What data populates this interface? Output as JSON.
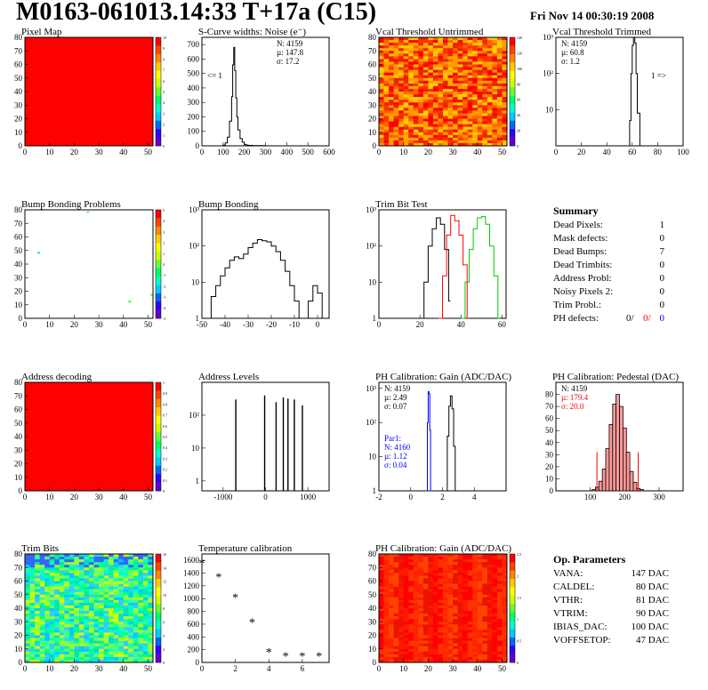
{
  "header": {
    "title": "M0163-061013.14:33 T+17a (C15)",
    "date": "Fri Nov 14 00:30:19 2008"
  },
  "colors": {
    "red": "#ff0000",
    "blue": "#0000ff",
    "green": "#00cc00",
    "black": "#000000"
  },
  "chart_data": [
    {
      "id": "pixel_map",
      "type": "heatmap",
      "title": "Pixel Map",
      "xlim": [
        0,
        52
      ],
      "ylim": [
        0,
        80
      ],
      "xticks": [
        "0",
        "10",
        "20",
        "30",
        "40",
        "50"
      ],
      "yticks": [
        "0",
        "10",
        "20",
        "30",
        "40",
        "50",
        "60",
        "70",
        "80"
      ],
      "pattern": "uniform-max",
      "zlim": [
        0,
        10
      ],
      "zticks": [
        "0",
        "1",
        "2",
        "3",
        "4",
        "5",
        "6",
        "7",
        "8",
        "9",
        "10"
      ]
    },
    {
      "id": "scurve",
      "type": "line",
      "title": "S-Curve widths: Noise (e⁻)",
      "xlim": [
        0,
        600
      ],
      "ylim": [
        0,
        750
      ],
      "xticks": [
        "0",
        "100",
        "200",
        "300",
        "400",
        "500",
        "600"
      ],
      "yticks": [
        "0",
        "100",
        "200",
        "300",
        "400",
        "500",
        "600",
        "700"
      ],
      "stats": [
        "N: 4159",
        "µ: 147.8",
        "σ: 17.2"
      ],
      "annotation": "<= 1",
      "series": [
        {
          "x": [
            90,
            100,
            110,
            120,
            130,
            140,
            145,
            150,
            155,
            160,
            165,
            170,
            180,
            190,
            200,
            210,
            220,
            240,
            260,
            300
          ],
          "values": [
            0,
            5,
            20,
            60,
            170,
            340,
            560,
            680,
            520,
            330,
            200,
            110,
            50,
            25,
            10,
            5,
            3,
            2,
            1,
            0
          ]
        }
      ]
    },
    {
      "id": "vcal_untrimmed",
      "type": "heatmap",
      "title": "Vcal Threshold Untrimmed",
      "xlim": [
        0,
        52
      ],
      "ylim": [
        0,
        80
      ],
      "xticks": [
        "0",
        "10",
        "20",
        "30",
        "40",
        "50"
      ],
      "yticks": [
        "0",
        "10",
        "20",
        "30",
        "40",
        "50",
        "60",
        "70",
        "80"
      ],
      "pattern": "noise-hot",
      "zlim": [
        0,
        140
      ],
      "zticks": [
        "0",
        "20",
        "40",
        "60",
        "80",
        "100",
        "120",
        "140"
      ]
    },
    {
      "id": "vcal_trimmed",
      "type": "line",
      "title": "Vcal Threshold Trimmed",
      "xlim": [
        0,
        100
      ],
      "ylim": [
        1,
        1000
      ],
      "logy": true,
      "xticks": [
        "0",
        "20",
        "40",
        "60",
        "80",
        "100"
      ],
      "yticks": [
        "10",
        "10²",
        "10³"
      ],
      "stats": [
        "N: 4159",
        "µ: 60.8",
        "σ: 1.2"
      ],
      "annotation": "1 =>",
      "series": [
        {
          "x": [
            56,
            58,
            59,
            60,
            61,
            62,
            63,
            64,
            66
          ],
          "values": [
            1,
            5,
            100,
            600,
            1000,
            700,
            100,
            8,
            1
          ]
        }
      ]
    },
    {
      "id": "bump_problems",
      "type": "heatmap",
      "title": "Bump Bonding Problems",
      "xlim": [
        0,
        52
      ],
      "ylim": [
        0,
        80
      ],
      "xticks": [
        "0",
        "10",
        "20",
        "30",
        "40",
        "50"
      ],
      "yticks": [
        "0",
        "10",
        "20",
        "30",
        "40",
        "50",
        "60",
        "70",
        "80"
      ],
      "pattern": "sparse",
      "zlim": [
        -5,
        5
      ],
      "zticks": [
        "-5",
        "-4",
        "-3",
        "-2",
        "-1",
        "0",
        "1",
        "2",
        "3",
        "4",
        "5"
      ]
    },
    {
      "id": "bump_bonding",
      "type": "line",
      "title": "Bump Bonding",
      "xlim": [
        -50,
        5
      ],
      "ylim": [
        1,
        1000
      ],
      "logy": true,
      "xticks": [
        "-50",
        "-40",
        "-30",
        "-20",
        "-10",
        "0"
      ],
      "yticks": [
        "1",
        "10",
        "10²",
        "10³"
      ],
      "series": [
        {
          "x": [
            -48,
            -46,
            -44,
            -42,
            -40,
            -38,
            -36,
            -34,
            -32,
            -30,
            -28,
            -26,
            -24,
            -22,
            -20,
            -18,
            -16,
            -14,
            -12,
            -10,
            -8,
            -6,
            -4,
            -2,
            0,
            2
          ],
          "values": [
            1,
            4,
            8,
            15,
            25,
            40,
            50,
            45,
            60,
            90,
            120,
            150,
            140,
            130,
            100,
            70,
            40,
            20,
            8,
            3,
            1,
            1,
            3,
            8,
            5,
            1
          ]
        }
      ]
    },
    {
      "id": "trim_bits",
      "type": "line",
      "title": "Trim Bit Test",
      "xlim": [
        0,
        62
      ],
      "ylim": [
        1,
        1000
      ],
      "logy": true,
      "xticks": [
        "0",
        "20",
        "40",
        "60"
      ],
      "yticks": [
        "1",
        "10",
        "10²",
        "10³"
      ],
      "series": [
        {
          "x": [
            20,
            22,
            24,
            26,
            28,
            30,
            32,
            34
          ],
          "values": [
            1,
            10,
            100,
            300,
            600,
            400,
            80,
            3
          ],
          "color": "#000000"
        },
        {
          "x": [
            29,
            31,
            33,
            35,
            37,
            39,
            41,
            43
          ],
          "values": [
            1,
            15,
            200,
            700,
            500,
            200,
            30,
            1
          ],
          "color": "#ff0000"
        },
        {
          "x": [
            40,
            42,
            44,
            46,
            48,
            50,
            52,
            54,
            56,
            58
          ],
          "values": [
            1,
            10,
            80,
            300,
            600,
            650,
            400,
            100,
            15,
            1
          ],
          "color": "#00cc00"
        }
      ]
    },
    {
      "id": "address_decoding",
      "type": "heatmap",
      "title": "Address decoding",
      "xlim": [
        0,
        52
      ],
      "ylim": [
        0,
        80
      ],
      "xticks": [
        "0",
        "10",
        "20",
        "30",
        "40",
        "50"
      ],
      "yticks": [
        "0",
        "10",
        "20",
        "30",
        "40",
        "50",
        "60",
        "70",
        "80"
      ],
      "pattern": "uniform-max",
      "zlim": [
        0,
        1
      ],
      "zticks": [
        "0",
        "0.1",
        "0.2",
        "0.3",
        "0.4",
        "0.5",
        "0.6",
        "0.7",
        "0.8",
        "0.9",
        "1"
      ]
    },
    {
      "id": "address_levels",
      "type": "bar",
      "title": "Address Levels",
      "xlim": [
        -1500,
        1500
      ],
      "ylim": [
        0.5,
        1000
      ],
      "logy": true,
      "xticks": [
        "-1000",
        "0",
        "1000"
      ],
      "yticks": [
        "1",
        "10",
        "10²"
      ],
      "x": [
        -700,
        -20,
        250,
        420,
        530,
        680,
        870
      ],
      "values": [
        300,
        400,
        250,
        350,
        320,
        300,
        200
      ]
    },
    {
      "id": "ph_gain",
      "type": "line",
      "title": "PH Calibration: Gain (ADC/DAC)",
      "xlim": [
        -2,
        6
      ],
      "ylim": [
        1,
        1500
      ],
      "logy": true,
      "xticks": [
        "-2",
        "0",
        "2",
        "4"
      ],
      "yticks": [
        "1",
        "10",
        "10²",
        "10³"
      ],
      "stats": [
        "N: 4159",
        "µ: 2.49",
        "σ: 0.07"
      ],
      "stats2": [
        "Par1:",
        "N: 4160",
        "µ: 1.12",
        "σ: 0.04"
      ],
      "series": [
        {
          "x": [
            2.2,
            2.3,
            2.4,
            2.5,
            2.6,
            2.7,
            2.8
          ],
          "values": [
            1,
            40,
            300,
            600,
            250,
            20,
            1
          ],
          "color": "#000000"
        },
        {
          "x": [
            1.0,
            1.05,
            1.1,
            1.15,
            1.2,
            1.25
          ],
          "values": [
            1,
            100,
            800,
            700,
            60,
            1
          ],
          "color": "#0000ff"
        }
      ]
    },
    {
      "id": "ph_pedestal",
      "type": "bar",
      "title": "PH Calibration: Pedestal (DAC)",
      "xlim": [
        0,
        370
      ],
      "ylim": [
        0,
        90
      ],
      "xticks": [
        "100",
        "200",
        "300"
      ],
      "yticks": [
        "0",
        "10",
        "20",
        "30",
        "40",
        "50",
        "60",
        "70",
        "80"
      ],
      "stats": [
        "N: 4159",
        "µ: 179.4",
        "σ: 20.0"
      ],
      "x": [
        110,
        120,
        130,
        140,
        150,
        160,
        170,
        180,
        190,
        200,
        210,
        220,
        230,
        240,
        250
      ],
      "values": [
        1,
        3,
        8,
        18,
        35,
        55,
        72,
        80,
        70,
        52,
        32,
        16,
        7,
        2,
        1
      ]
    },
    {
      "id": "trim_bits_map",
      "type": "heatmap",
      "title": "Trim Bits",
      "xlim": [
        0,
        52
      ],
      "ylim": [
        0,
        80
      ],
      "xticks": [
        "0",
        "10",
        "20",
        "30",
        "40",
        "50"
      ],
      "yticks": [
        "0",
        "10",
        "20",
        "30",
        "40",
        "50",
        "60",
        "70",
        "80"
      ],
      "pattern": "noise-cool",
      "zlim": [
        0,
        16
      ],
      "zticks": [
        "0",
        "2",
        "4",
        "6",
        "8",
        "10",
        "12",
        "14",
        "16"
      ]
    },
    {
      "id": "temperature",
      "type": "scatter",
      "title": "Temperature calibration",
      "xlim": [
        0,
        7.6
      ],
      "ylim": [
        0,
        1700
      ],
      "xticks": [
        "0",
        "2",
        "4",
        "6"
      ],
      "yticks": [
        "0",
        "200",
        "400",
        "600",
        "800",
        "1000",
        "1200",
        "1400",
        "1600"
      ],
      "x": [
        0,
        1,
        2,
        3,
        4,
        5,
        6,
        7
      ],
      "values": [
        1550,
        1330,
        1010,
        620,
        150,
        90,
        90,
        90
      ]
    },
    {
      "id": "ph_gain_map",
      "type": "heatmap",
      "title": "PH Calibration: Gain (ADC/DAC)",
      "xlim": [
        0,
        52
      ],
      "ylim": [
        0,
        80
      ],
      "xticks": [
        "0",
        "10",
        "20",
        "30",
        "40",
        "50"
      ],
      "yticks": [
        "0",
        "10",
        "20",
        "30",
        "40",
        "50",
        "60",
        "70",
        "80"
      ],
      "pattern": "columns",
      "zlim": [
        0,
        2.5
      ],
      "zticks": [
        "0",
        "0.5",
        "1",
        "1.5",
        "2",
        "2.5"
      ]
    }
  ],
  "summary": {
    "title": "Summary",
    "rows": [
      {
        "label": "Dead Pixels:",
        "value": "1"
      },
      {
        "label": "Mask defects:",
        "value": "0"
      },
      {
        "label": "Dead Bumps:",
        "value": "7"
      },
      {
        "label": "Dead Trimbits:",
        "value": "0"
      },
      {
        "label": "Address Probl:",
        "value": "0"
      },
      {
        "label": "Noisy Pixels 2:",
        "value": "0"
      },
      {
        "label": "Trim Probl.:",
        "value": "0"
      }
    ],
    "ph_label": "PH defects:",
    "ph_values": [
      "0/",
      "0/",
      "0"
    ]
  },
  "op_params": {
    "title": "Op. Parameters",
    "rows": [
      {
        "label": "VANA:",
        "value": "147 DAC"
      },
      {
        "label": "CALDEL:",
        "value": "80 DAC"
      },
      {
        "label": "VTHR:",
        "value": "81 DAC"
      },
      {
        "label": "VTRIM:",
        "value": "90 DAC"
      },
      {
        "label": "IBIAS_DAC:",
        "value": "100 DAC"
      },
      {
        "label": "VOFFSETOP:",
        "value": "47 DAC"
      }
    ]
  }
}
